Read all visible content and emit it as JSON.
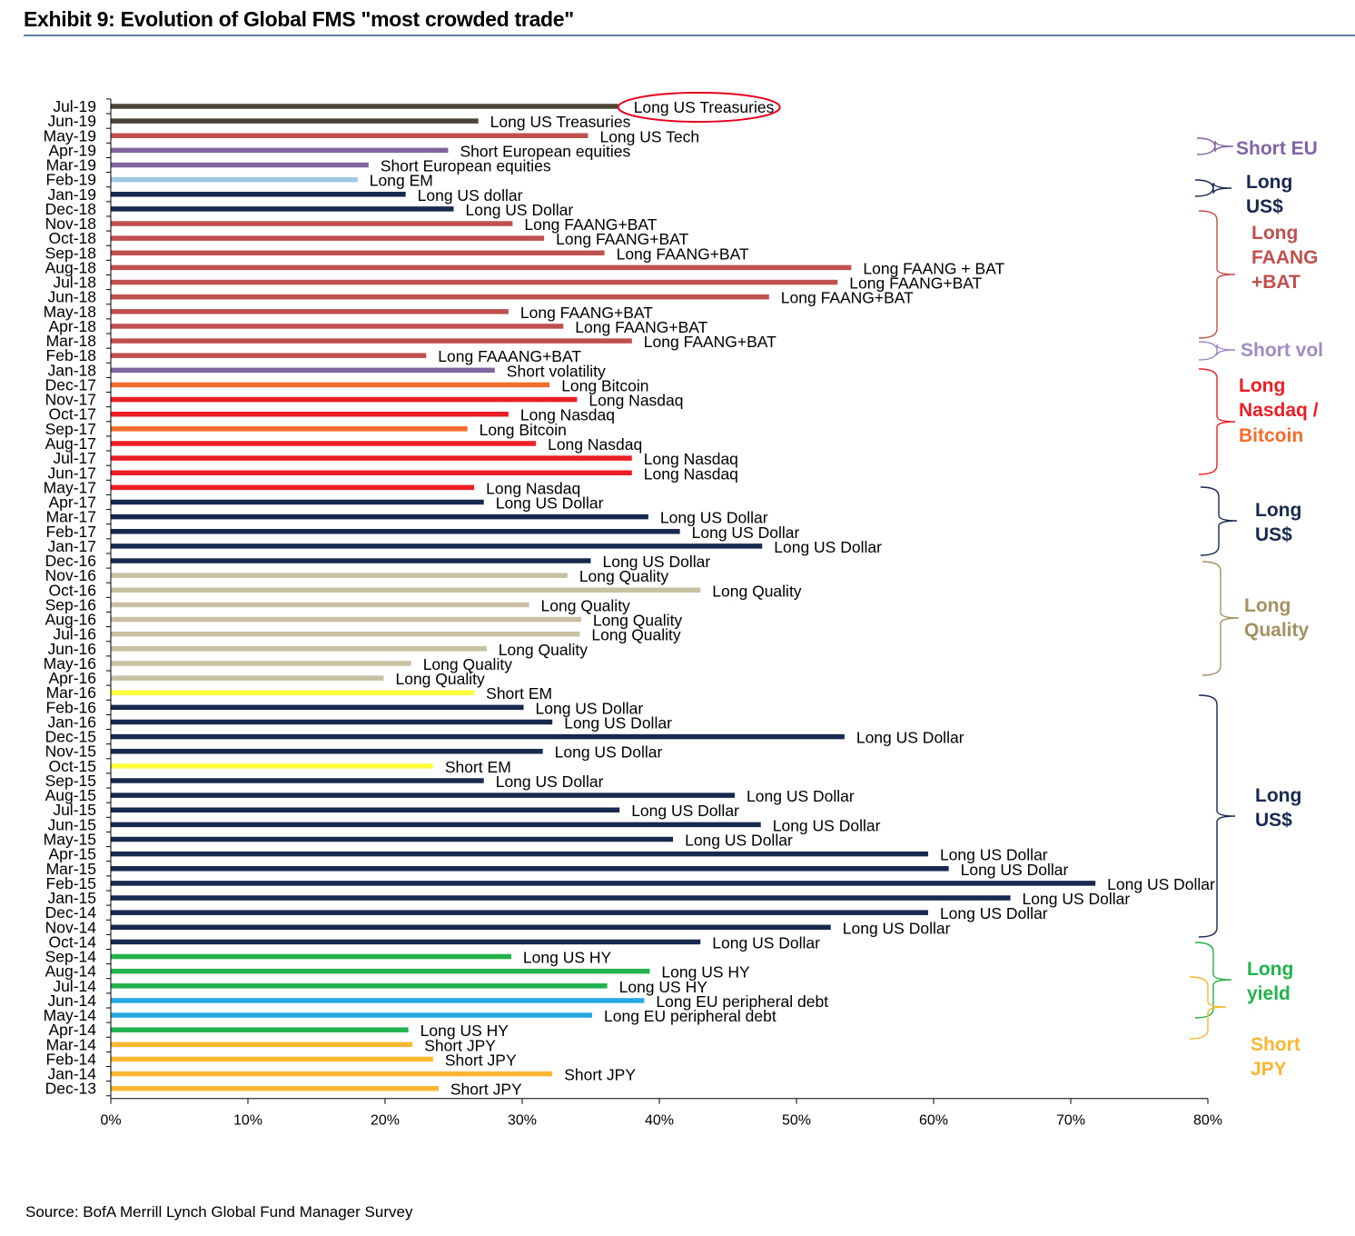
{
  "title": "Exhibit 9: Evolution of Global FMS \"most crowded trade\"",
  "source": "Source: BofA Merrill Lynch Global Fund Manager Survey",
  "colors": {
    "treasuries": "#4a4336",
    "tech": "#c0504d",
    "short_eu": "#8064a2",
    "em": "#9dc9e0",
    "dollar": "#17294f",
    "faang": "#c0504d",
    "nasdaq": "#ee1c25",
    "bitcoin": "#f26c2d",
    "quality": "#c9bfa2",
    "short_em": "#ffff3b",
    "hy": "#21b24b",
    "eu_debt": "#26a9e0",
    "jpy": "#fbb731",
    "highlight": "#e4001b"
  },
  "groups": [
    {
      "label": "Short EU",
      "color": "#8064a2"
    },
    {
      "label": "Long US$",
      "color": "#17294f"
    },
    {
      "label": "Long FAANG +BAT",
      "color": "#c0504d"
    },
    {
      "label": "Short vol",
      "color": "#a08cc4"
    },
    {
      "label": "Long Nasdaq /",
      "color": "#ee1c25"
    },
    {
      "label": "Bitcoin",
      "color": "#f26c2d"
    },
    {
      "label": "Long US$",
      "color": "#17294f"
    },
    {
      "label": "Long Quality",
      "color": "#a39163"
    },
    {
      "label": "Long US$",
      "color": "#17294f"
    },
    {
      "label": "Long yield",
      "color": "#21b24b"
    },
    {
      "label": "Short JPY",
      "color": "#fbb731"
    }
  ],
  "chart_data": {
    "type": "bar",
    "orientation": "horizontal",
    "title": "Exhibit 9: Evolution of Global FMS \"most crowded trade\"",
    "xlabel": "",
    "ylabel": "",
    "xlim": [
      0,
      80
    ],
    "x_ticks": [
      "0%",
      "10%",
      "20%",
      "30%",
      "40%",
      "50%",
      "60%",
      "70%",
      "80%"
    ],
    "highlighted_label": "Long US Treasuries",
    "bars": [
      {
        "month": "Jul-19",
        "value": 37,
        "label": "Long US Treasuries",
        "key": "treasuries"
      },
      {
        "month": "Jun-19",
        "value": 26.8,
        "label": "Long US Treasuries",
        "key": "treasuries"
      },
      {
        "month": "May-19",
        "value": 34.8,
        "label": "Long US Tech",
        "key": "tech"
      },
      {
        "month": "Apr-19",
        "value": 24.6,
        "label": "Short European equities",
        "key": "short_eu"
      },
      {
        "month": "Mar-19",
        "value": 18.8,
        "label": "Short European equities",
        "key": "short_eu"
      },
      {
        "month": "Feb-19",
        "value": 18,
        "label": "Long EM",
        "key": "em"
      },
      {
        "month": "Jan-19",
        "value": 21.5,
        "label": "Long US dollar",
        "key": "dollar"
      },
      {
        "month": "Dec-18",
        "value": 25,
        "label": "Long US Dollar",
        "key": "dollar"
      },
      {
        "month": "Nov-18",
        "value": 29.3,
        "label": "Long FAANG+BAT",
        "key": "faang"
      },
      {
        "month": "Oct-18",
        "value": 31.6,
        "label": "Long FAANG+BAT",
        "key": "faang"
      },
      {
        "month": "Sep-18",
        "value": 36,
        "label": "Long FAANG+BAT",
        "key": "faang"
      },
      {
        "month": "Aug-18",
        "value": 54,
        "label": "Long FAANG + BAT",
        "key": "faang"
      },
      {
        "month": "Jul-18",
        "value": 53,
        "label": "Long FAANG+BAT",
        "key": "faang"
      },
      {
        "month": "Jun-18",
        "value": 48,
        "label": "Long FAANG+BAT",
        "key": "faang"
      },
      {
        "month": "May-18",
        "value": 29,
        "label": "Long FAANG+BAT",
        "key": "faang"
      },
      {
        "month": "Apr-18",
        "value": 33,
        "label": "Long FAANG+BAT",
        "key": "faang"
      },
      {
        "month": "Mar-18",
        "value": 38,
        "label": "Long FAANG+BAT",
        "key": "faang"
      },
      {
        "month": "Feb-18",
        "value": 23,
        "label": "Long FAAANG+BAT",
        "key": "faang"
      },
      {
        "month": "Jan-18",
        "value": 28,
        "label": "Short volatility",
        "key": "short_eu"
      },
      {
        "month": "Dec-17",
        "value": 32,
        "label": "Long Bitcoin",
        "key": "bitcoin"
      },
      {
        "month": "Nov-17",
        "value": 34,
        "label": "Long Nasdaq",
        "key": "nasdaq"
      },
      {
        "month": "Oct-17",
        "value": 29,
        "label": "Long Nasdaq",
        "key": "nasdaq"
      },
      {
        "month": "Sep-17",
        "value": 26,
        "label": "Long Bitcoin",
        "key": "bitcoin"
      },
      {
        "month": "Aug-17",
        "value": 31,
        "label": "Long Nasdaq",
        "key": "nasdaq"
      },
      {
        "month": "Jul-17",
        "value": 38,
        "label": "Long Nasdaq",
        "key": "nasdaq"
      },
      {
        "month": "Jun-17",
        "value": 38,
        "label": "Long Nasdaq",
        "key": "nasdaq"
      },
      {
        "month": "May-17",
        "value": 26.5,
        "label": "Long Nasdaq",
        "key": "nasdaq"
      },
      {
        "month": "Apr-17",
        "value": 27.2,
        "label": "Long US Dollar",
        "key": "dollar"
      },
      {
        "month": "Mar-17",
        "value": 39.2,
        "label": "Long US Dollar",
        "key": "dollar"
      },
      {
        "month": "Feb-17",
        "value": 41.5,
        "label": "Long US Dollar",
        "key": "dollar"
      },
      {
        "month": "Jan-17",
        "value": 47.5,
        "label": "Long US Dollar",
        "key": "dollar"
      },
      {
        "month": "Dec-16",
        "value": 35,
        "label": "Long US Dollar",
        "key": "dollar"
      },
      {
        "month": "Nov-16",
        "value": 33.3,
        "label": "Long Quality",
        "key": "quality"
      },
      {
        "month": "Oct-16",
        "value": 43,
        "label": "Long Quality",
        "key": "quality"
      },
      {
        "month": "Sep-16",
        "value": 30.5,
        "label": "Long Quality",
        "key": "quality"
      },
      {
        "month": "Aug-16",
        "value": 34.3,
        "label": "Long Quality",
        "key": "quality"
      },
      {
        "month": "Jul-16",
        "value": 34.2,
        "label": "Long Quality",
        "key": "quality"
      },
      {
        "month": "Jun-16",
        "value": 27.4,
        "label": "Long Quality",
        "key": "quality"
      },
      {
        "month": "May-16",
        "value": 21.9,
        "label": "Long Quality",
        "key": "quality"
      },
      {
        "month": "Apr-16",
        "value": 19.9,
        "label": "Long Quality",
        "key": "quality"
      },
      {
        "month": "Mar-16",
        "value": 26.5,
        "label": "Short EM",
        "key": "short_em"
      },
      {
        "month": "Feb-16",
        "value": 30.1,
        "label": "Long US Dollar",
        "key": "dollar"
      },
      {
        "month": "Jan-16",
        "value": 32.2,
        "label": "Long US Dollar",
        "key": "dollar"
      },
      {
        "month": "Dec-15",
        "value": 53.5,
        "label": "Long US Dollar",
        "key": "dollar"
      },
      {
        "month": "Nov-15",
        "value": 31.5,
        "label": "Long US Dollar",
        "key": "dollar"
      },
      {
        "month": "Oct-15",
        "value": 23.5,
        "label": "Short EM",
        "key": "short_em"
      },
      {
        "month": "Sep-15",
        "value": 27.2,
        "label": "Long US Dollar",
        "key": "dollar"
      },
      {
        "month": "Aug-15",
        "value": 45.5,
        "label": "Long US Dollar",
        "key": "dollar"
      },
      {
        "month": "Jul-15",
        "value": 37.1,
        "label": "Long US Dollar",
        "key": "dollar"
      },
      {
        "month": "Jun-15",
        "value": 47.4,
        "label": "Long US Dollar",
        "key": "dollar"
      },
      {
        "month": "May-15",
        "value": 41,
        "label": "Long US Dollar",
        "key": "dollar"
      },
      {
        "month": "Apr-15",
        "value": 59.6,
        "label": "Long US Dollar",
        "key": "dollar"
      },
      {
        "month": "Mar-15",
        "value": 61.1,
        "label": "Long US Dollar",
        "key": "dollar"
      },
      {
        "month": "Feb-15",
        "value": 71.8,
        "label": "Long US Dollar",
        "key": "dollar"
      },
      {
        "month": "Jan-15",
        "value": 65.6,
        "label": "Long US Dollar",
        "key": "dollar"
      },
      {
        "month": "Dec-14",
        "value": 59.6,
        "label": "Long US Dollar",
        "key": "dollar"
      },
      {
        "month": "Nov-14",
        "value": 52.5,
        "label": "Long US Dollar",
        "key": "dollar"
      },
      {
        "month": "Oct-14",
        "value": 43,
        "label": "Long US Dollar",
        "key": "dollar"
      },
      {
        "month": "Sep-14",
        "value": 29.2,
        "label": "Long US HY",
        "key": "hy"
      },
      {
        "month": "Aug-14",
        "value": 39.3,
        "label": "Long US HY",
        "key": "hy"
      },
      {
        "month": "Jul-14",
        "value": 36.2,
        "label": "Long US HY",
        "key": "hy"
      },
      {
        "month": "Jun-14",
        "value": 38.9,
        "label": "Long EU peripheral debt",
        "key": "eu_debt"
      },
      {
        "month": "May-14",
        "value": 35.1,
        "label": "Long EU peripheral debt",
        "key": "eu_debt"
      },
      {
        "month": "Apr-14",
        "value": 21.7,
        "label": "Long US HY",
        "key": "hy"
      },
      {
        "month": "Mar-14",
        "value": 22,
        "label": "Short JPY",
        "key": "jpy"
      },
      {
        "month": "Feb-14",
        "value": 23.5,
        "label": "Short JPY",
        "key": "jpy"
      },
      {
        "month": "Jan-14",
        "value": 32.2,
        "label": "Short JPY",
        "key": "jpy"
      },
      {
        "month": "Dec-13",
        "value": 23.9,
        "label": "Short JPY",
        "key": "jpy"
      }
    ]
  }
}
